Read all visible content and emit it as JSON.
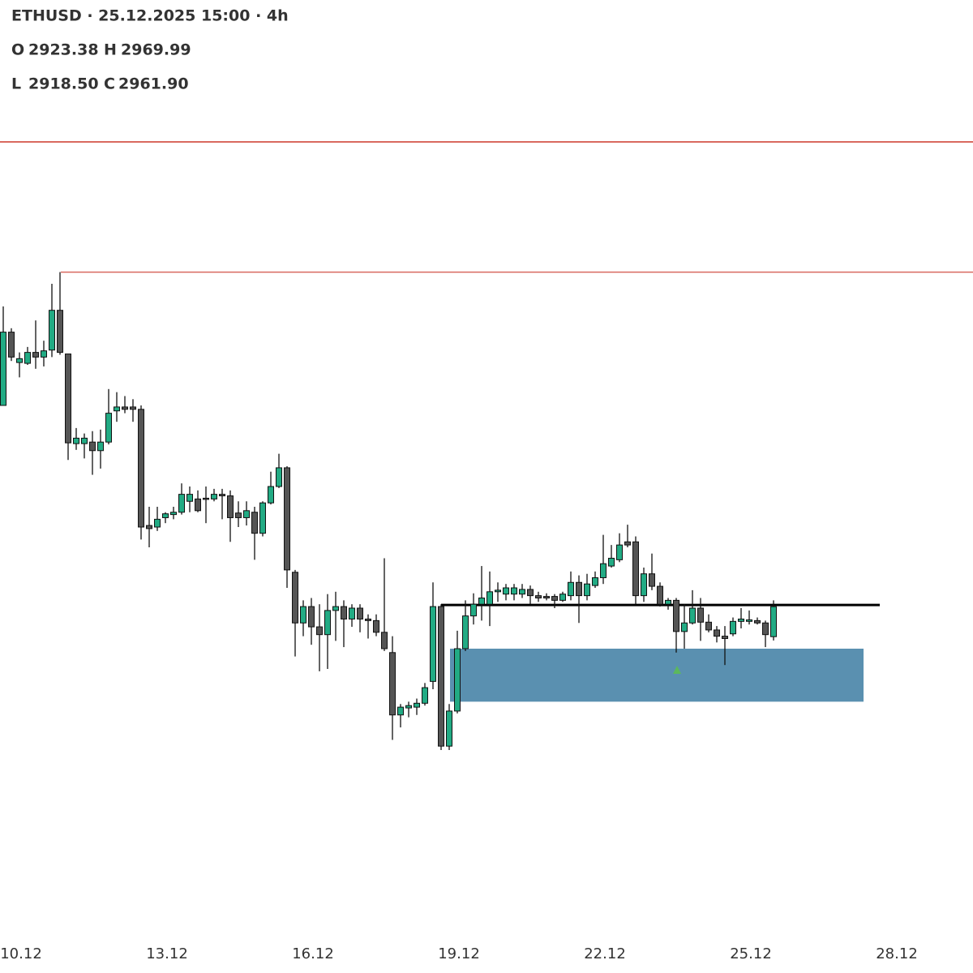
{
  "chart_data": {
    "type": "candlestick",
    "title": "ETHUSD · 25.12.2025 15:00 · 4h",
    "ohlc_labels": [
      "O",
      "H",
      "L",
      "C"
    ],
    "ohlc_values": [
      "2923.38",
      "2969.99",
      "2918.50",
      "2961.90"
    ],
    "up_color": "#22ab84",
    "down_color": "#555555",
    "label_color": "#1fae7c",
    "xlim": [
      -0.4,
      119.6
    ],
    "xticks": [
      {
        "value": 2,
        "label": "10.12"
      },
      {
        "value": 20,
        "label": "13.12"
      },
      {
        "value": 38,
        "label": "16.12"
      },
      {
        "value": 56,
        "label": "19.12"
      },
      {
        "value": 74,
        "label": "22.12"
      },
      {
        "value": 92,
        "label": "25.12"
      },
      {
        "value": 110,
        "label": "28.12"
      }
    ],
    "ylim": [
      2544,
      3584
    ],
    "candles": {
      "open": [
        3220,
        3314,
        3275,
        3274,
        3288,
        3282,
        3291,
        3342,
        3286,
        3171,
        3171,
        3173,
        3162,
        3173,
        3213,
        3218,
        3218,
        3215,
        3066,
        3064,
        3076,
        3080,
        3083,
        3097,
        3100,
        3101,
        3100,
        3106,
        3104,
        3082,
        3076,
        3083,
        3056,
        3095,
        3116,
        3140,
        3006,
        2941,
        2962,
        2936,
        2926,
        2957,
        2962,
        2946,
        2960,
        2946,
        2944,
        2929,
        2903,
        2823,
        2832,
        2833,
        2838,
        2866,
        2962,
        2783,
        2828,
        2908,
        2950,
        2965,
        2965,
        2981,
        2978,
        2978,
        2978,
        2984,
        2976,
        2975,
        2975,
        2970,
        2976,
        2993,
        2976,
        2989,
        2999,
        3014,
        3022,
        3045,
        3045,
        2976,
        3004,
        2988,
        2965,
        2970,
        2930,
        2941,
        2960,
        2942,
        2932,
        2924,
        2927,
        2943,
        2943,
        2944,
        2941,
        2923.38
      ],
      "high": [
        3347,
        3319,
        3288,
        3295,
        3329,
        3303,
        3376,
        3391,
        3286,
        3191,
        3184,
        3187,
        3189,
        3241,
        3237,
        3232,
        3228,
        3220,
        3090,
        3090,
        3083,
        3090,
        3120,
        3116,
        3111,
        3116,
        3113,
        3113,
        3111,
        3097,
        3097,
        3090,
        3097,
        3135,
        3158,
        3142,
        3009,
        2970,
        2973,
        2965,
        2978,
        2981,
        2970,
        2965,
        2965,
        2952,
        2952,
        3024,
        2924,
        2837,
        2840,
        2844,
        2864,
        2993,
        2965,
        2837,
        2931,
        2970,
        2979,
        3014,
        3007,
        2993,
        2991,
        2991,
        2991,
        2989,
        2981,
        2979,
        2978,
        2981,
        3007,
        3002,
        3004,
        3007,
        3054,
        3041,
        3056,
        3067,
        3052,
        3012,
        3030,
        2993,
        2973,
        2973,
        2965,
        2983,
        2973,
        2952,
        2937,
        2937,
        2948,
        2960,
        2957,
        2948,
        2944,
        2969.99
      ],
      "low": [
        3220,
        3277,
        3256,
        3272,
        3267,
        3270,
        3282,
        3285,
        3150,
        3163,
        3152,
        3131,
        3139,
        3170,
        3199,
        3210,
        3199,
        3048,
        3038,
        3059,
        3069,
        3074,
        3080,
        3083,
        3083,
        3069,
        3097,
        3074,
        3045,
        3064,
        3066,
        3022,
        3052,
        3093,
        3114,
        2986,
        2898,
        2924,
        2913,
        2879,
        2882,
        2918,
        2910,
        2936,
        2929,
        2921,
        2924,
        2905,
        2791,
        2807,
        2820,
        2823,
        2835,
        2856,
        2778,
        2778,
        2825,
        2905,
        2939,
        2944,
        2937,
        2968,
        2970,
        2970,
        2973,
        2965,
        2968,
        2970,
        2960,
        2968,
        2970,
        2941,
        2970,
        2986,
        2991,
        3012,
        3019,
        3038,
        2965,
        2968,
        2983,
        2962,
        2958,
        2903,
        2908,
        2939,
        2918,
        2929,
        2916,
        2887,
        2924,
        2934,
        2939,
        2939,
        2910,
        2918.5
      ],
      "close": [
        3314,
        3282,
        3280,
        3288,
        3282,
        3290,
        3342,
        3288,
        3172,
        3178,
        3178,
        3162,
        3173,
        3210,
        3218,
        3215,
        3215,
        3064,
        3062,
        3074,
        3081,
        3083,
        3106,
        3106,
        3085,
        3100,
        3106,
        3104,
        3076,
        3076,
        3085,
        3056,
        3095,
        3116,
        3140,
        3009,
        2941,
        2962,
        2936,
        2926,
        2957,
        2962,
        2946,
        2960,
        2946,
        2944,
        2929,
        2908,
        2823,
        2833,
        2835,
        2838,
        2858,
        2962,
        2783,
        2828,
        2908,
        2950,
        2965,
        2973,
        2981,
        2983,
        2986,
        2986,
        2984,
        2976,
        2973,
        2973,
        2970,
        2978,
        2993,
        2976,
        2991,
        2999,
        3017,
        3024,
        3041,
        3041,
        2976,
        3004,
        2988,
        2965,
        2970,
        2930,
        2941,
        2960,
        2942,
        2932,
        2924,
        2921,
        2943,
        2946,
        2945,
        2941,
        2926,
        2961.9
      ]
    },
    "levels": [
      {
        "price": 3558,
        "start": -0.4,
        "end": 119.6,
        "color": "#d9695f"
      },
      {
        "price": 3391,
        "start": 7.1,
        "end": 119.6,
        "color": "#d9695f"
      },
      {
        "price": 2964,
        "start": 54,
        "end": 108.1,
        "color": "#000000"
      }
    ],
    "zone": {
      "top": 2908,
      "bottom": 2840,
      "start": 55.1,
      "end": 106.1,
      "color": "#5a90b0"
    },
    "marker": {
      "x": 83.1,
      "price": 2881,
      "color": "#5cb85c"
    }
  }
}
